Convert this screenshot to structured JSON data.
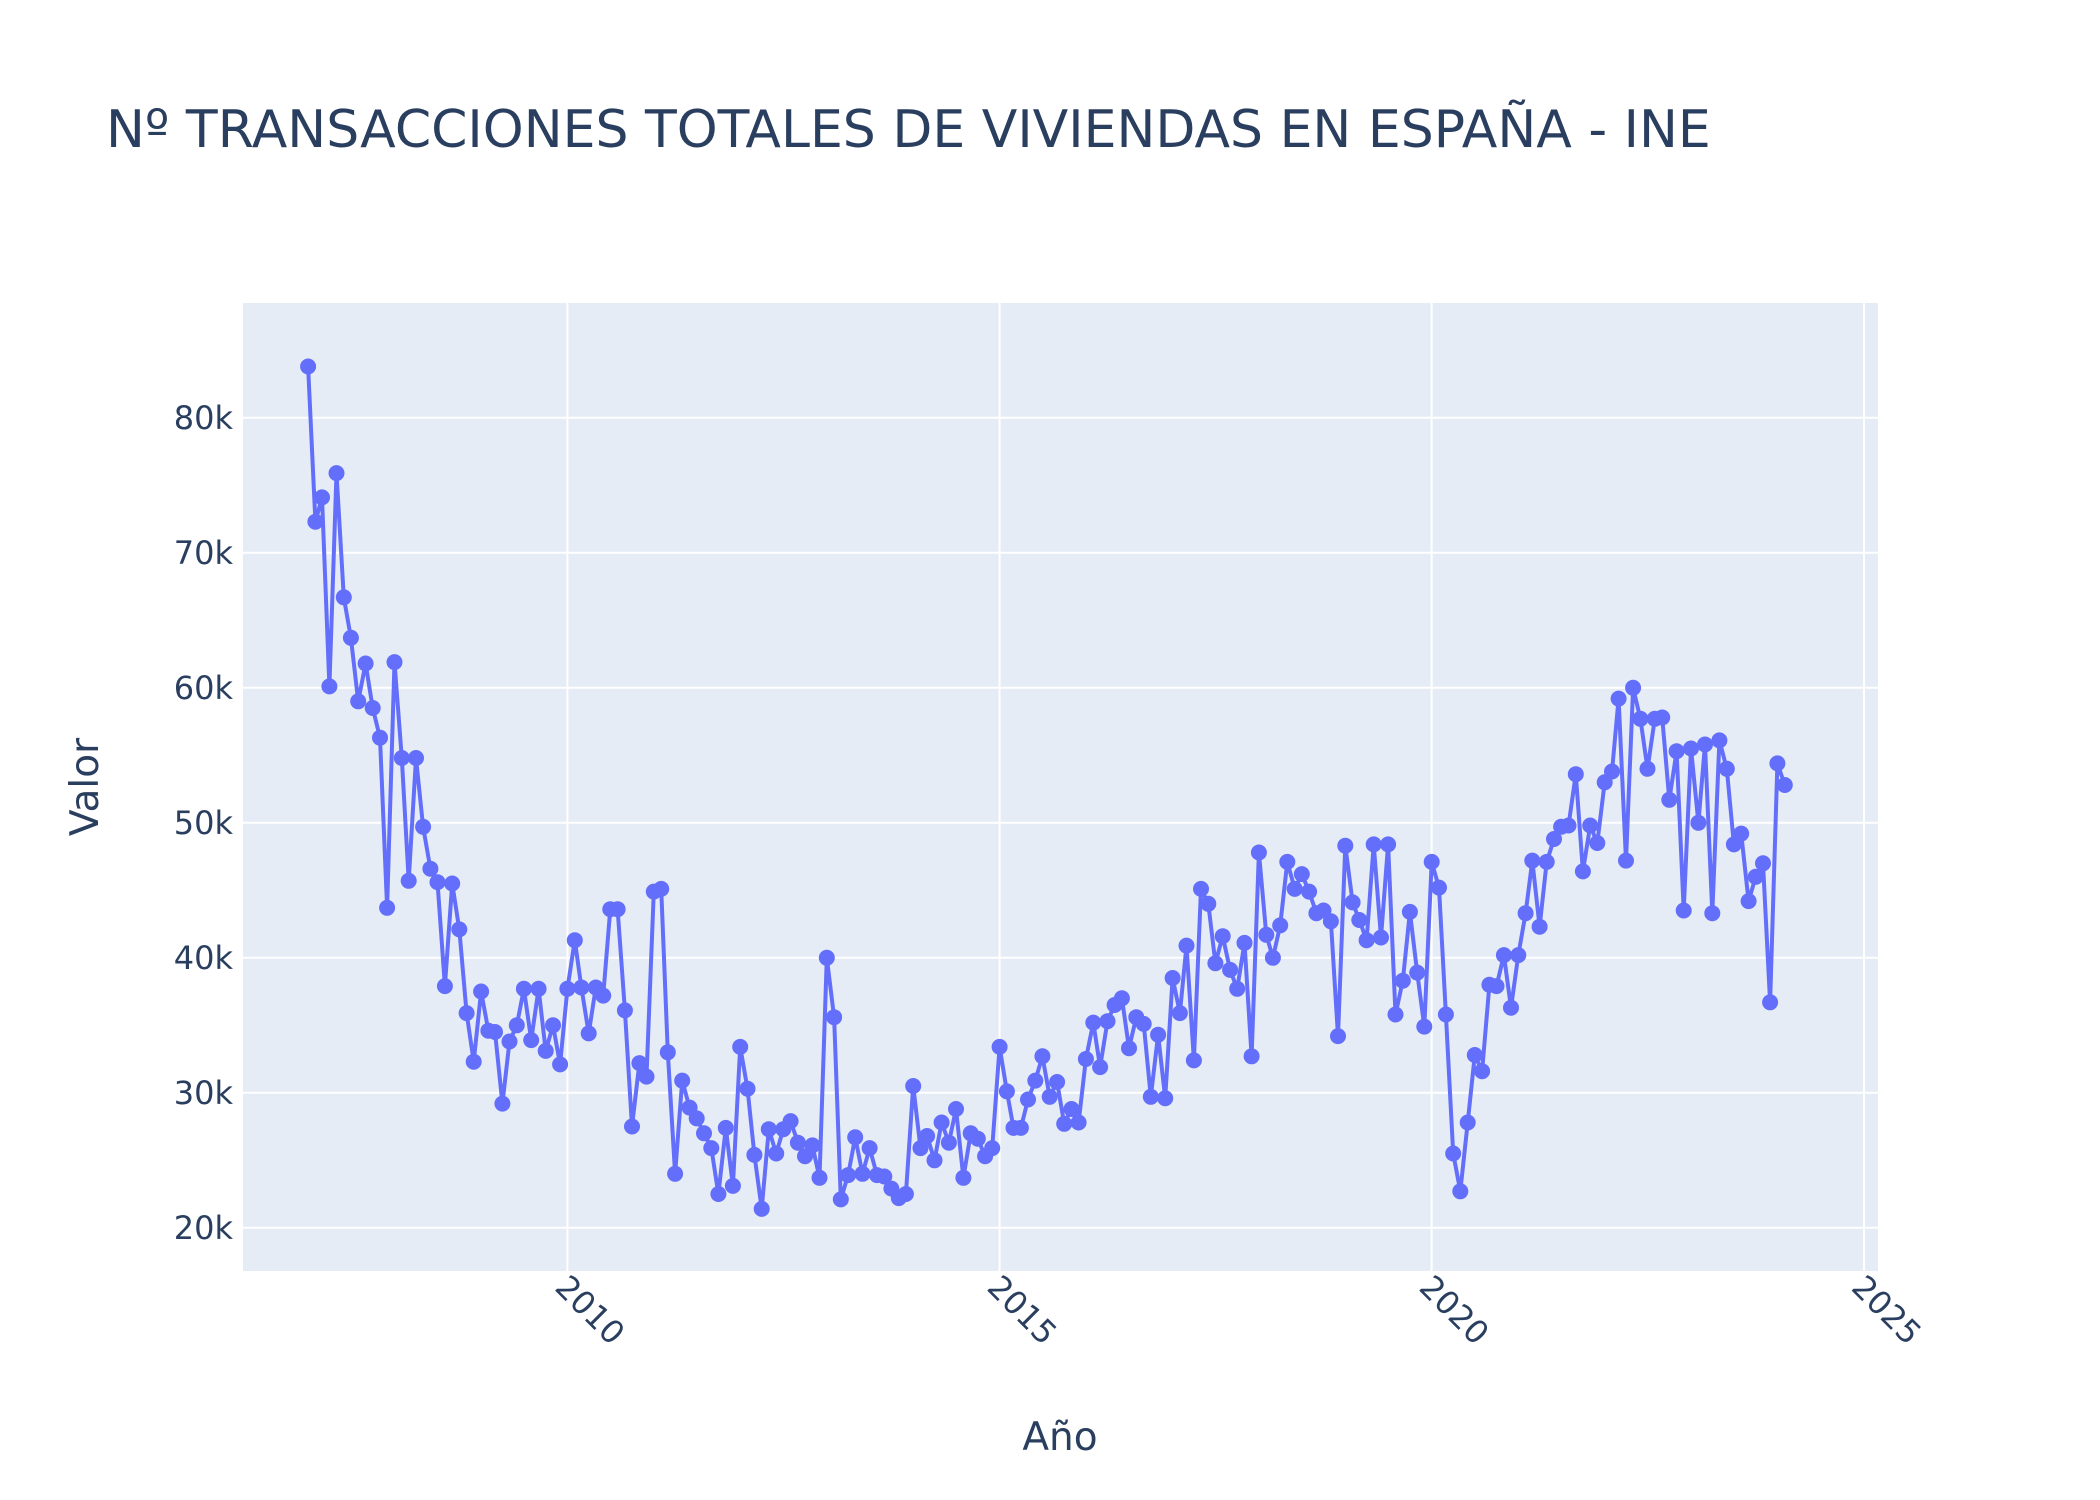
{
  "colors": {
    "plot_background": "#e5ecf6",
    "grid": "#ffffff",
    "line": "#636efa",
    "text": "#2a3f5f"
  },
  "chart_data": {
    "type": "line",
    "mode": "lines+markers",
    "title": "Nº TRANSACCIONES TOTALES DE VIVIENDAS EN ESPAÑA - INE",
    "xlabel": "Año",
    "ylabel": "Valor",
    "xlim": [
      "2006-04-01",
      "2025-03-01"
    ],
    "ylim": [
      16800,
      88500
    ],
    "x_ticks": [
      {
        "value": "2010-01-01",
        "label": "2010"
      },
      {
        "value": "2015-01-01",
        "label": "2015"
      },
      {
        "value": "2020-01-01",
        "label": "2020"
      },
      {
        "value": "2025-01-01",
        "label": "2025"
      }
    ],
    "y_ticks": [
      {
        "value": 20000,
        "label": "20k"
      },
      {
        "value": 30000,
        "label": "30k"
      },
      {
        "value": 40000,
        "label": "40k"
      },
      {
        "value": 50000,
        "label": "50k"
      },
      {
        "value": 60000,
        "label": "60k"
      },
      {
        "value": 70000,
        "label": "70k"
      },
      {
        "value": 80000,
        "label": "80k"
      }
    ],
    "grid": true,
    "start": "2007-01",
    "frequency": "monthly",
    "series": [
      {
        "values": [
          83800,
          72300,
          74100,
          60100,
          75900,
          66700,
          63700,
          59000,
          61800,
          58500,
          56300,
          43700,
          61900,
          54800,
          45700,
          54800,
          49700,
          46600,
          45600,
          37900,
          45500,
          42100,
          35900,
          32300,
          37500,
          34600,
          34500,
          29200,
          33800,
          35000,
          37700,
          33900,
          37700,
          33100,
          35000,
          32100,
          37700,
          41300,
          37800,
          34400,
          37800,
          37200,
          43600,
          43600,
          36100,
          27500,
          32200,
          31200,
          44900,
          45100,
          33000,
          24000,
          30900,
          28900,
          28100,
          27000,
          25900,
          22500,
          27400,
          23100,
          33400,
          30300,
          25400,
          21400,
          27300,
          25500,
          27300,
          27900,
          26300,
          25300,
          26100,
          23700,
          40000,
          35600,
          22100,
          23900,
          26700,
          24000,
          25900,
          23900,
          23800,
          22900,
          22200,
          22500,
          30500,
          25900,
          26800,
          25000,
          27800,
          26300,
          28800,
          23700,
          27000,
          26600,
          25300,
          25900,
          33400,
          30100,
          27400,
          27400,
          29500,
          30900,
          32700,
          29700,
          30800,
          27700,
          28800,
          27800,
          32500,
          35200,
          31900,
          35300,
          36500,
          37000,
          33300,
          35600,
          35100,
          29700,
          34300,
          29600,
          38500,
          35900,
          40900,
          32400,
          45100,
          44000,
          39600,
          41600,
          39100,
          37700,
          41100,
          32700,
          47800,
          41700,
          40000,
          42400,
          47100,
          45100,
          46200,
          44900,
          43300,
          43500,
          42700,
          34200,
          48300,
          44100,
          42800,
          41300,
          48400,
          41500,
          48400,
          35800,
          38300,
          43400,
          38900,
          34900,
          47100,
          45200,
          35800,
          25500,
          22700,
          27800,
          32800,
          31600,
          38000,
          37900,
          40200,
          36300,
          40200,
          43300,
          47200,
          42300,
          47100,
          48800,
          49700,
          49800,
          53600,
          46400,
          49800,
          48500,
          53000,
          53800,
          59200,
          47200,
          60000,
          57700,
          54000,
          57700,
          57800,
          51700,
          55300,
          43500,
          55500,
          50000,
          55800,
          43300,
          56100,
          54000,
          48400,
          49200,
          44200,
          46000,
          47000,
          36700,
          54400,
          52800
        ]
      }
    ]
  }
}
